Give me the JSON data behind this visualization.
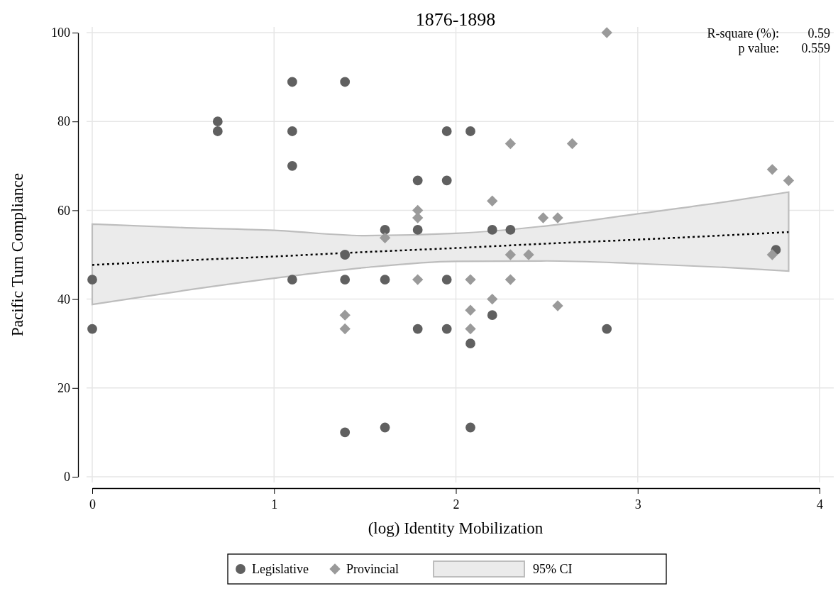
{
  "chart_data": {
    "type": "scatter",
    "title": "1876-1898",
    "xlabel": "(log) Identity Mobilization",
    "ylabel": "Pacific Turn Compliance",
    "xlim": [
      0,
      4
    ],
    "ylim": [
      0,
      100
    ],
    "xticks": [
      0,
      1,
      2,
      3,
      4
    ],
    "yticks": [
      0,
      20,
      40,
      60,
      80,
      100
    ],
    "grid": true,
    "legend": "bottom",
    "annotations": [
      "R-square (%):",
      "0.59",
      "p value:",
      "0.559"
    ],
    "series": [
      {
        "name": "Legislative",
        "color": "#606060",
        "marker": "circle",
        "x": [
          0,
          0,
          0.69,
          0.69,
          1.1,
          1.1,
          1.1,
          1.1,
          1.39,
          1.39,
          1.39,
          1.39,
          1.61,
          1.61,
          1.61,
          1.79,
          1.79,
          1.79,
          1.95,
          1.95,
          1.95,
          1.95,
          2.08,
          2.08,
          2.08,
          2.2,
          2.2,
          2.3,
          2.83,
          3.76
        ],
        "values": [
          44.4,
          33.3,
          80,
          77.8,
          88.9,
          77.8,
          70,
          44.4,
          88.9,
          50,
          44.4,
          10,
          55.6,
          44.4,
          11.1,
          66.7,
          55.6,
          33.3,
          77.8,
          66.7,
          44.4,
          33.3,
          77.8,
          30,
          11.1,
          55.6,
          36.4,
          55.6,
          33.3,
          51.1
        ]
      },
      {
        "name": "Provincial",
        "color": "#9a9a9a",
        "marker": "diamond",
        "x": [
          1.39,
          1.39,
          1.61,
          1.79,
          1.79,
          1.79,
          2.08,
          2.08,
          2.08,
          2.2,
          2.2,
          2.3,
          2.3,
          2.3,
          2.4,
          2.48,
          2.56,
          2.56,
          2.64,
          2.83,
          3.74,
          3.74,
          3.83
        ],
        "values": [
          36.4,
          33.3,
          53.8,
          60,
          58.3,
          44.4,
          44.4,
          37.5,
          33.3,
          62.1,
          40,
          75,
          50,
          44.4,
          50,
          58.3,
          58.3,
          38.5,
          75,
          100,
          69.2,
          50,
          66.7
        ]
      },
      {
        "name": "95% CI",
        "type": "line",
        "color": "#000000",
        "line_style": "dotted",
        "marker": "none",
        "x": [
          0,
          0.5,
          1,
          1.5,
          2,
          2.5,
          3,
          3.5,
          3.83
        ],
        "values": [
          47.7,
          48.7,
          49.6,
          50.6,
          51.5,
          52.5,
          53.4,
          54.4,
          55.1
        ],
        "lower": [
          38.8,
          41.9,
          44.7,
          47.1,
          48.5,
          48.6,
          48,
          47.1,
          46.3
        ],
        "upper": [
          56.9,
          56.1,
          55.5,
          54.3,
          54.8,
          56.5,
          59.2,
          62,
          64.1
        ]
      }
    ]
  }
}
